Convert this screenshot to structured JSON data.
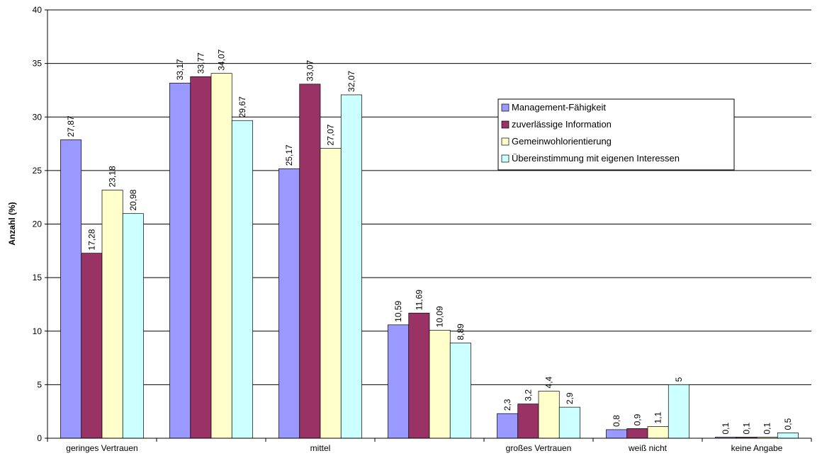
{
  "chart_data": {
    "type": "bar",
    "y_label": "Anzahl (%)",
    "categories": [
      "geringes Vertrauen",
      null,
      "mittel",
      null,
      "großes Vertrauen",
      "weiß nicht",
      "keine Angabe"
    ],
    "series": [
      {
        "name": "Management-Fähigkeit",
        "color": "#9999ff",
        "values": [
          27.87,
          33.17,
          25.17,
          10.59,
          2.3,
          0.8,
          0.1
        ],
        "value_labels": [
          "27,87",
          "33,17",
          "25,17",
          "10,59",
          "2,3",
          "0,8",
          "0,1"
        ]
      },
      {
        "name": "zuverlässige Information",
        "color": "#993366",
        "values": [
          17.28,
          33.77,
          33.07,
          11.69,
          3.2,
          0.9,
          0.1
        ],
        "value_labels": [
          "17,28",
          "33,77",
          "33,07",
          "11,69",
          "3,2",
          "0,9",
          "0,1"
        ]
      },
      {
        "name": "Gemeinwohlorientierung",
        "color": "#ffffcc",
        "values": [
          23.18,
          34.07,
          27.07,
          10.09,
          4.4,
          1.1,
          0.1
        ],
        "value_labels": [
          "23,18",
          "34,07",
          "27,07",
          "10,09",
          "4,4",
          "1,1",
          "0,1"
        ]
      },
      {
        "name": "Übereinstimmung mit eigenen Interessen",
        "color": "#ccffff",
        "values": [
          20.98,
          29.67,
          32.07,
          8.89,
          2.9,
          5,
          0.5
        ],
        "value_labels": [
          "20,98",
          "29,67",
          "32,07",
          "8,89",
          "2,9",
          "5",
          "0,5"
        ]
      }
    ],
    "ylim": [
      0,
      40
    ],
    "yticks": [
      0,
      5,
      10,
      15,
      20,
      25,
      30,
      35,
      40
    ],
    "grid": true,
    "legend": "right"
  }
}
